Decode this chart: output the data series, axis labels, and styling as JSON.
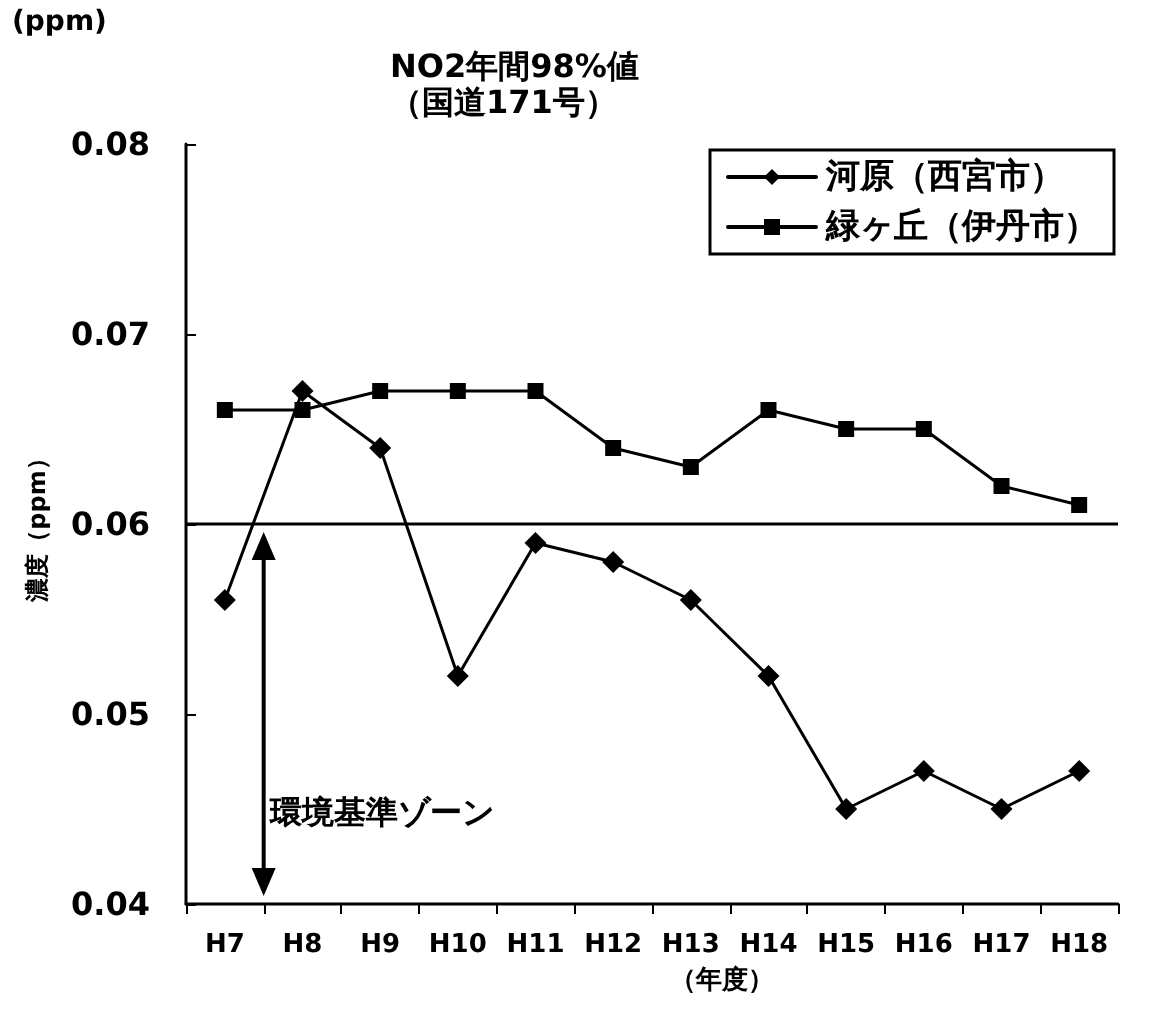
{
  "chart_data": {
    "type": "line",
    "title": "NO2年間98%値",
    "subtitle": "（国道171号）",
    "xlabel": "（年度）",
    "ylabel": "濃度（ppm）",
    "annotations": [
      "(ppm)",
      "環境基準ゾーン"
    ],
    "categories": [
      "H7",
      "H8",
      "H9",
      "H10",
      "H11",
      "H12",
      "H13",
      "H14",
      "H15",
      "H16",
      "H17",
      "H18"
    ],
    "series": [
      {
        "name": "河原（西宮市）",
        "color": "#000000",
        "marker": "diamond",
        "values": [
          0.056,
          0.067,
          0.064,
          0.052,
          0.059,
          0.058,
          0.056,
          0.052,
          0.045,
          0.047,
          0.045,
          0.047
        ]
      },
      {
        "name": "緑ヶ丘（伊丹市）",
        "color": "#000000",
        "marker": "square",
        "values": [
          0.066,
          0.066,
          0.067,
          0.067,
          0.067,
          0.064,
          0.063,
          0.066,
          0.065,
          0.065,
          0.062,
          0.061
        ]
      }
    ],
    "ylim": [
      0.04,
      0.08
    ],
    "yticks": [
      0.04,
      0.05,
      0.06,
      0.07,
      0.08
    ],
    "ref_lines": [
      {
        "axis": "y",
        "value": 0.06,
        "color": "#000000"
      }
    ],
    "grid": false,
    "legend": "top right",
    "line_style": "solid"
  }
}
